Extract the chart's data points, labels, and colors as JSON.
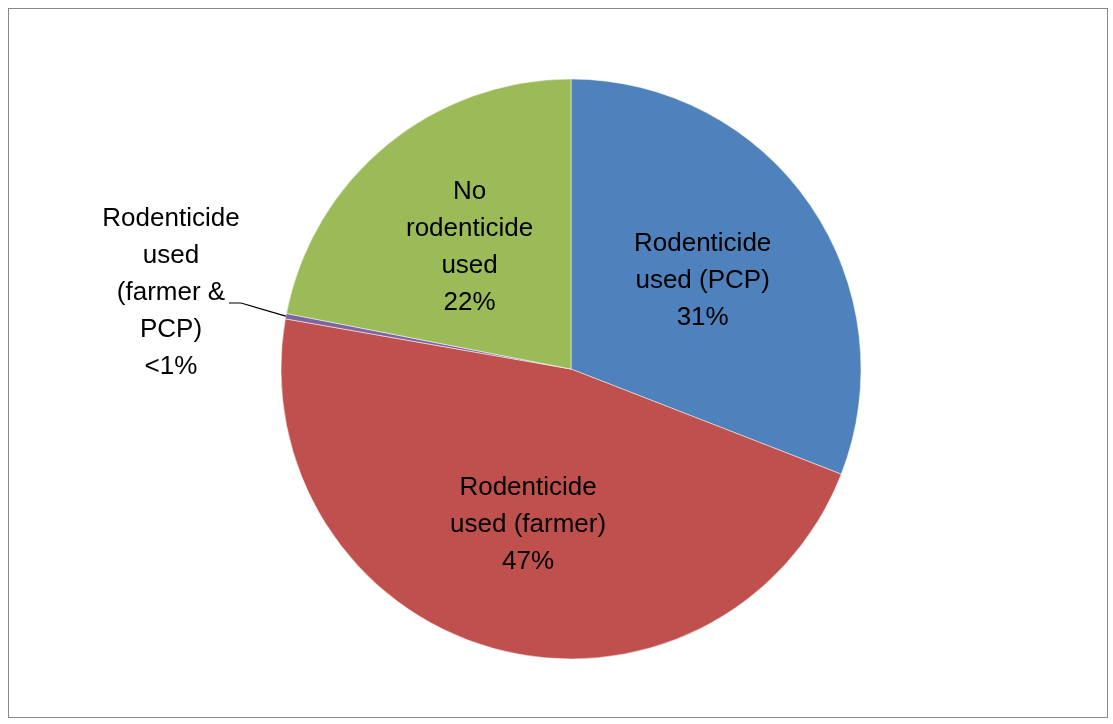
{
  "chart_data": {
    "type": "pie",
    "categories": [
      "Rodenticide used (PCP)",
      "Rodenticide used (farmer)",
      "Rodenticide used (farmer & PCP)",
      "No rodenticide used"
    ],
    "values": [
      31,
      47,
      0.3,
      22
    ],
    "colors": [
      "#4f81bd",
      "#c0504d",
      "#8064a2",
      "#9bbb59"
    ],
    "value_labels": [
      "31%",
      "47%",
      "<1%",
      "22%"
    ]
  }
}
